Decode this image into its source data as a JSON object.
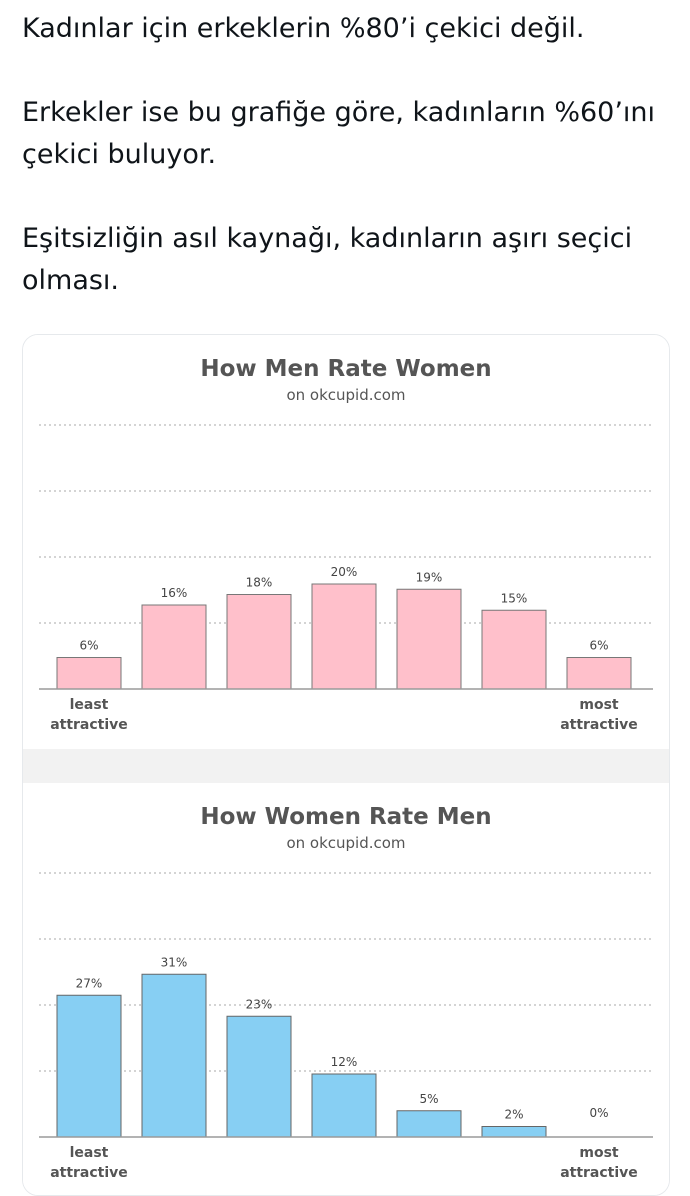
{
  "tweet": {
    "paragraphs": [
      "Kadınlar için erkeklerin %80’i çekici değil.",
      "Erkekler ise bu grafiğe göre, kadınların %60’ını çekici buluyor.",
      "Eşitsizliğin asıl kaynağı, kadınların aşırı seçici olması."
    ]
  },
  "chart_data": [
    {
      "type": "bar",
      "title": "How Men Rate Women",
      "subtitle": "on okcupid.com",
      "categories": [
        "least attractive",
        "",
        "",
        "",
        "",
        "",
        "most attractive"
      ],
      "values": [
        6,
        16,
        18,
        20,
        19,
        15,
        6
      ],
      "data_labels": [
        "6%",
        "16%",
        "18%",
        "20%",
        "19%",
        "15%",
        "6%"
      ],
      "x_end_labels": {
        "left": [
          "least",
          "attractive"
        ],
        "right": [
          "most",
          "attractive"
        ]
      },
      "ylim": [
        0,
        31
      ],
      "grid": true,
      "bar_color": "#ffc0cb",
      "bar_stroke": "#777777"
    },
    {
      "type": "bar",
      "title": "How Women Rate Men",
      "subtitle": "on okcupid.com",
      "categories": [
        "least attractive",
        "",
        "",
        "",
        "",
        "",
        "most attractive"
      ],
      "values": [
        27,
        31,
        23,
        12,
        5,
        2,
        0
      ],
      "data_labels": [
        "27%",
        "31%",
        "23%",
        "12%",
        "5%",
        "2%",
        "0%"
      ],
      "x_end_labels": {
        "left": [
          "least",
          "attractive"
        ],
        "right": [
          "most",
          "attractive"
        ]
      },
      "ylim": [
        0,
        31
      ],
      "grid": true,
      "bar_color": "#87cff3",
      "bar_stroke": "#666666"
    }
  ]
}
